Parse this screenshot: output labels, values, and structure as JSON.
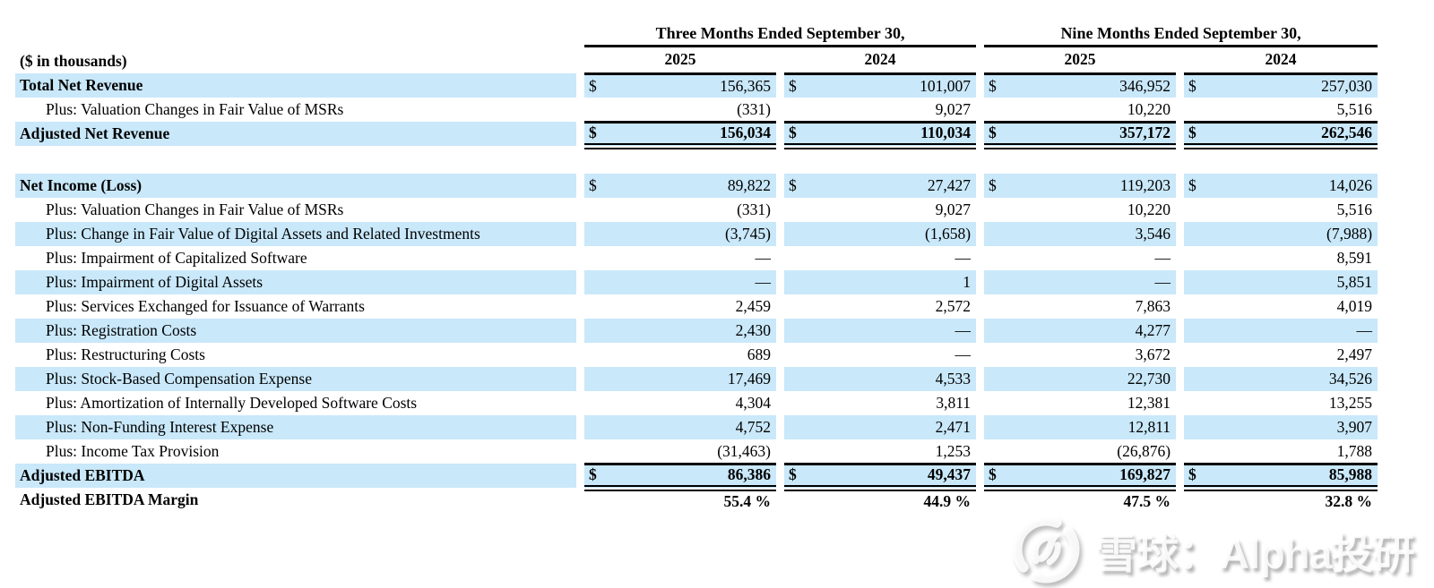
{
  "table": {
    "unit_label": "($ in thousands)",
    "currency_symbol": "$",
    "col_groups": [
      {
        "label": "Three Months Ended September 30,",
        "years": [
          "2025",
          "2024"
        ]
      },
      {
        "label": "Nine Months Ended September 30,",
        "years": [
          "2025",
          "2024"
        ]
      }
    ],
    "rows": [
      {
        "label": "Total Net Revenue",
        "bold": true,
        "shaded": true,
        "dollar": true,
        "values": [
          "156,365",
          "101,007",
          "346,952",
          "257,030"
        ]
      },
      {
        "label": "Plus: Valuation Changes in Fair Value of MSRs",
        "indent": true,
        "values": [
          "(331)",
          "9,027",
          "10,220",
          "5,516"
        ]
      },
      {
        "label": "Adjusted Net Revenue",
        "bold": true,
        "shaded": true,
        "dollar": true,
        "bold_values": true,
        "rule_top": true,
        "rule_double_bottom": true,
        "values": [
          "156,034",
          "110,034",
          "357,172",
          "262,546"
        ]
      },
      {
        "spacer": true
      },
      {
        "label": "Net Income (Loss)",
        "bold": true,
        "shaded": true,
        "dollar": true,
        "values": [
          "89,822",
          "27,427",
          "119,203",
          "14,026"
        ]
      },
      {
        "label": "Plus: Valuation Changes in Fair Value of MSRs",
        "indent": true,
        "values": [
          "(331)",
          "9,027",
          "10,220",
          "5,516"
        ]
      },
      {
        "label": "Plus: Change in Fair Value of Digital Assets and Related Investments",
        "indent": true,
        "shaded": true,
        "values": [
          "(3,745)",
          "(1,658)",
          "3,546",
          "(7,988)"
        ]
      },
      {
        "label": "Plus: Impairment of Capitalized Software",
        "indent": true,
        "values": [
          "—",
          "—",
          "—",
          "8,591"
        ]
      },
      {
        "label": "Plus: Impairment of Digital Assets",
        "indent": true,
        "shaded": true,
        "values": [
          "—",
          "1",
          "—",
          "5,851"
        ]
      },
      {
        "label": "Plus: Services Exchanged for Issuance of Warrants",
        "indent": true,
        "values": [
          "2,459",
          "2,572",
          "7,863",
          "4,019"
        ]
      },
      {
        "label": "Plus: Registration Costs",
        "indent": true,
        "shaded": true,
        "values": [
          "2,430",
          "—",
          "4,277",
          "—"
        ]
      },
      {
        "label": "Plus: Restructuring Costs",
        "indent": true,
        "values": [
          "689",
          "—",
          "3,672",
          "2,497"
        ]
      },
      {
        "label": "Plus: Stock-Based Compensation Expense",
        "indent": true,
        "shaded": true,
        "values": [
          "17,469",
          "4,533",
          "22,730",
          "34,526"
        ]
      },
      {
        "label": "Plus: Amortization of Internally Developed Software Costs",
        "indent": true,
        "values": [
          "4,304",
          "3,811",
          "12,381",
          "13,255"
        ]
      },
      {
        "label": "Plus: Non-Funding Interest Expense",
        "indent": true,
        "shaded": true,
        "values": [
          "4,752",
          "2,471",
          "12,811",
          "3,907"
        ]
      },
      {
        "label": "Plus: Income Tax Provision",
        "indent": true,
        "values": [
          "(31,463)",
          "1,253",
          "(26,876)",
          "1,788"
        ]
      },
      {
        "label": "Adjusted EBITDA",
        "bold": true,
        "shaded": true,
        "dollar": true,
        "bold_values": true,
        "rule_top": true,
        "rule_double_bottom": true,
        "values": [
          "86,386",
          "49,437",
          "169,827",
          "85,988"
        ]
      },
      {
        "label": "Adjusted EBITDA Margin",
        "bold": true,
        "bold_values": true,
        "values": [
          "55.4 %",
          "44.9 %",
          "47.5 %",
          "32.8 %"
        ]
      }
    ]
  },
  "watermark": {
    "text": "雪球：Alpha投研",
    "logo": "xueqiu-snowball-logo"
  },
  "colors": {
    "row_highlight": "#c9e8fa",
    "text": "#000000",
    "rule": "#000000",
    "watermark_text": "rgba(255,255,255,0.88)"
  }
}
